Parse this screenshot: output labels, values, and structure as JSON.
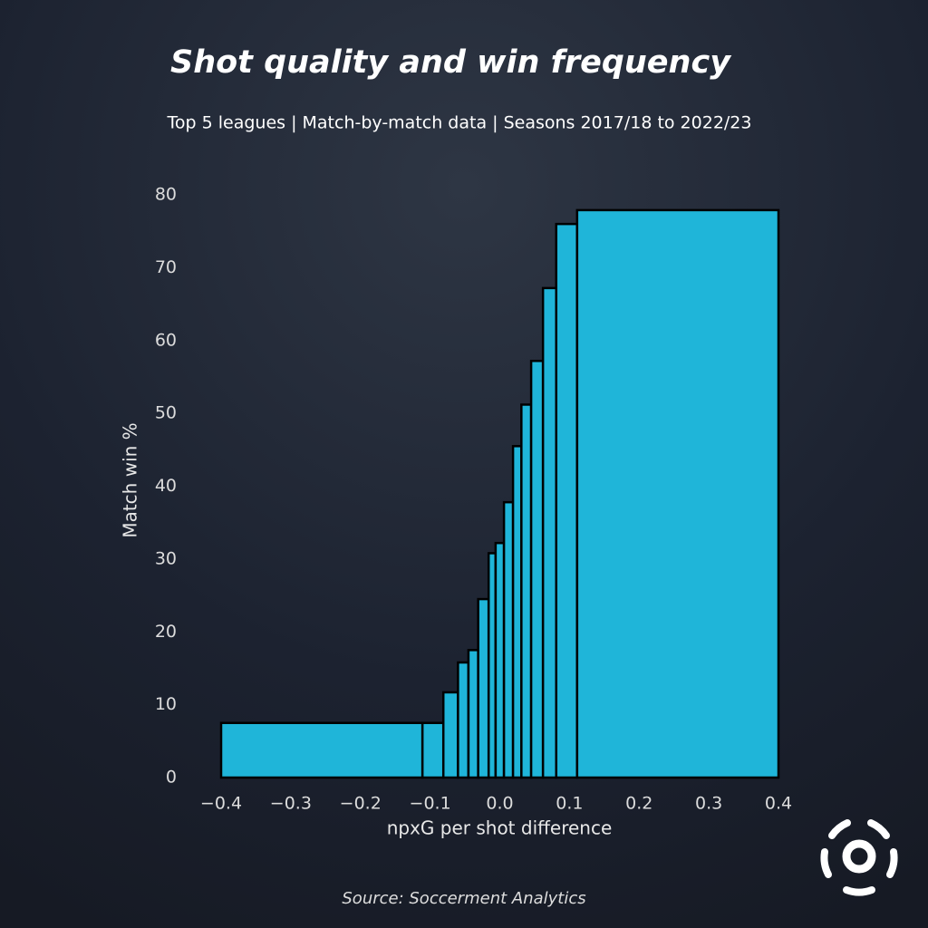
{
  "chart_data": {
    "type": "histogram",
    "title": "Shot quality and win frequency",
    "subtitle": "Top 5 leagues | Match-by-match data | Seasons 2017/18 to 2022/23",
    "xlabel": "npxG per shot difference",
    "ylabel": "Match win %",
    "source": "Source: Soccerment Analytics",
    "bins": [
      -0.4,
      -0.111,
      -0.081,
      -0.06,
      -0.045,
      -0.031,
      -0.016,
      -0.006,
      0.006,
      0.019,
      0.031,
      0.045,
      0.062,
      0.081,
      0.111,
      0.4
    ],
    "values": [
      7.5,
      7.5,
      11.7,
      15.8,
      17.5,
      24.5,
      30.8,
      32.2,
      37.8,
      45.5,
      51.2,
      57.2,
      67.2,
      76,
      77.9
    ],
    "color": "#1fb5d9",
    "xlim": [
      -0.4,
      0.4
    ],
    "xticks": [
      {
        "value": -0.4,
        "label": "−0.4"
      },
      {
        "value": -0.3,
        "label": "−0.3"
      },
      {
        "value": -0.2,
        "label": "−0.2"
      },
      {
        "value": -0.1,
        "label": "−0.1"
      },
      {
        "value": 0,
        "label": "0.0"
      },
      0.1,
      0.2,
      0.3,
      0.4
    ],
    "ylim": [
      0,
      80
    ],
    "yticks": [
      0,
      10,
      20,
      30,
      40,
      50,
      60,
      70,
      80
    ]
  }
}
